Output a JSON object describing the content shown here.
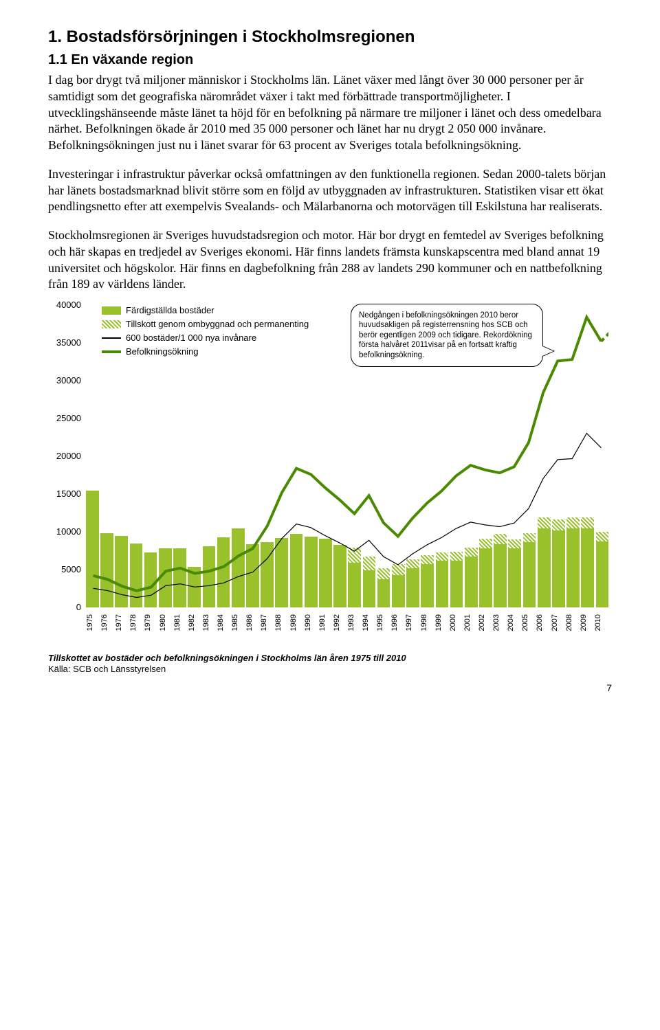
{
  "heading1": "1. Bostadsförsörjningen i Stockholmsregionen",
  "heading2": "1.1 En växande region",
  "paragraphs": [
    "I dag bor drygt två miljoner människor i Stockholms län. Länet växer med långt över 30 000 personer per år samtidigt som det geografiska närområdet växer i takt med förbättrade transportmöjligheter. I utvecklingshänseende måste länet ta höjd för en befolkning på närmare tre miljoner i länet och dess omedelbara närhet. Befolkningen ökade år 2010 med 35 000 personer och länet har nu drygt 2 050 000 invånare. Befolkningsökningen just nu i länet svarar för 63 procent av Sveriges totala befolkningsökning.",
    "Investeringar i infrastruktur påverkar också omfattningen av den funktionella regionen. Sedan 2000-talets början har länets bostadsmarknad blivit större som en följd av utbyggnaden av infrastrukturen. Statistiken visar ett ökat pendlingsnetto efter att exempelvis Svealands- och Mälarbanorna och motorvägen till Eskilstuna har realiserats.",
    "Stockholmsregionen är Sveriges huvudstadsregion och motor. Här bor drygt en femtedel av Sveriges befolkning och här skapas en tredjedel av Sveriges ekonomi. Här finns landets främsta kunskapscentra med bland annat 19 universitet och högskolor. Här finns en dagbefolkning från 288 av landets 290 kommuner och en nattbefolkning från 189 av världens länder."
  ],
  "chart": {
    "legend": {
      "bar": "Färdigställda bostäder",
      "hatch": "Tillskott genom ombyggnad och permanenting",
      "thinline": "600 bostäder/1 000 nya invånare",
      "thickline": "Befolkningsökning"
    },
    "callout": "Nedgången i befolkningsökningen 2010 beror huvudsakligen på registerrensning hos SCB och berör egentligen 2009 och tidigare. Rekordökning första halvåret 2011visar på en fortsatt kraftig befolkningsökning.",
    "ymax": 40000,
    "ystep": 5000,
    "yticks": [
      "40000",
      "35000",
      "30000",
      "25000",
      "20000",
      "15000",
      "10000",
      "5000",
      "0"
    ],
    "years": [
      "1975",
      "1976",
      "1977",
      "1978",
      "1979",
      "1980",
      "1981",
      "1982",
      "1983",
      "1984",
      "1985",
      "1986",
      "1987",
      "1988",
      "1989",
      "1990",
      "1991",
      "1992",
      "1993",
      "1994",
      "1995",
      "1996",
      "1997",
      "1998",
      "1999",
      "2000",
      "2001",
      "2002",
      "2003",
      "2004",
      "2005",
      "2006",
      "2007",
      "2008",
      "2009",
      "2010"
    ],
    "bars_main": [
      15500,
      9800,
      9500,
      8500,
      7300,
      7800,
      7800,
      5400,
      8100,
      9300,
      10500,
      8400,
      8600,
      9200,
      9700,
      9400,
      9100,
      8300,
      5900,
      4900,
      3700,
      4300,
      5200,
      5700,
      6200,
      6200,
      6700,
      7800,
      8400,
      7800,
      8600,
      10500,
      10200,
      10500,
      10500,
      8700
    ],
    "bars_hatch": [
      0,
      0,
      0,
      0,
      0,
      0,
      0,
      0,
      0,
      0,
      0,
      0,
      0,
      0,
      0,
      0,
      0,
      0,
      2000,
      1800,
      1500,
      1400,
      1200,
      1200,
      1100,
      1200,
      1200,
      1300,
      1300,
      1200,
      1200,
      1400,
      1400,
      1400,
      1400,
      1300
    ],
    "pop_growth": [
      4200,
      3700,
      2800,
      2200,
      2700,
      4800,
      5200,
      4500,
      4800,
      5400,
      6800,
      7800,
      10800,
      15200,
      18400,
      17600,
      15800,
      14200,
      12400,
      14800,
      11200,
      9400,
      11800,
      13800,
      15400,
      17400,
      18800,
      18200,
      17800,
      18600,
      21800,
      28400,
      32600,
      32800,
      38400,
      35200
    ],
    "need_line": [
      2520,
      2220,
      1680,
      1320,
      1620,
      2880,
      3120,
      2700,
      2880,
      3240,
      4080,
      4680,
      6480,
      9120,
      11040,
      10560,
      9480,
      8520,
      7440,
      8880,
      6720,
      5640,
      7080,
      8280,
      9240,
      10440,
      11280,
      10920,
      10680,
      11160,
      13080,
      17040,
      19560,
      19680,
      23040,
      21120
    ],
    "colors": {
      "bar": "#99c12c",
      "thickline": "#4a8a00",
      "thinline": "#000000",
      "dash": "#4a8a00"
    },
    "caption": "Tillskottet av bostäder och befolkningsökningen i Stockholms län åren 1975 till 2010",
    "caption_sub": "Källa: SCB och Länsstyrelsen"
  },
  "pagenum": "7"
}
